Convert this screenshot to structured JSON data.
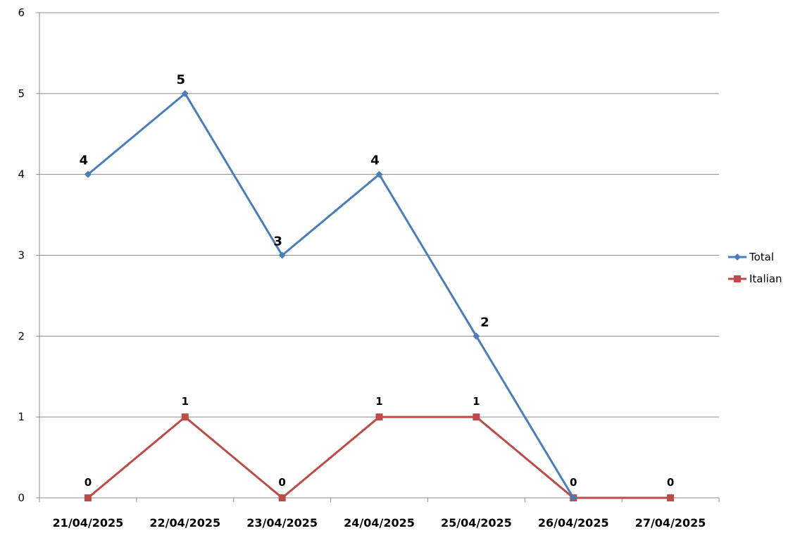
{
  "chart_data": {
    "type": "line",
    "categories": [
      "21/04/2025",
      "22/04/2025",
      "23/04/2025",
      "24/04/2025",
      "25/04/2025",
      "26/04/2025",
      "27/04/2025"
    ],
    "series": [
      {
        "name": "Total",
        "values": [
          4,
          5,
          3,
          4,
          2,
          0,
          null
        ],
        "color": "#4a7ebb",
        "marker": "diamond"
      },
      {
        "name": "Italian",
        "values": [
          0,
          1,
          0,
          1,
          1,
          0,
          0
        ],
        "color": "#be4b48",
        "marker": "square"
      }
    ],
    "ylim": [
      0,
      6
    ],
    "yticks": [
      0,
      1,
      2,
      3,
      4,
      5,
      6
    ],
    "grid": true,
    "legend": "right",
    "data_labels": true
  }
}
